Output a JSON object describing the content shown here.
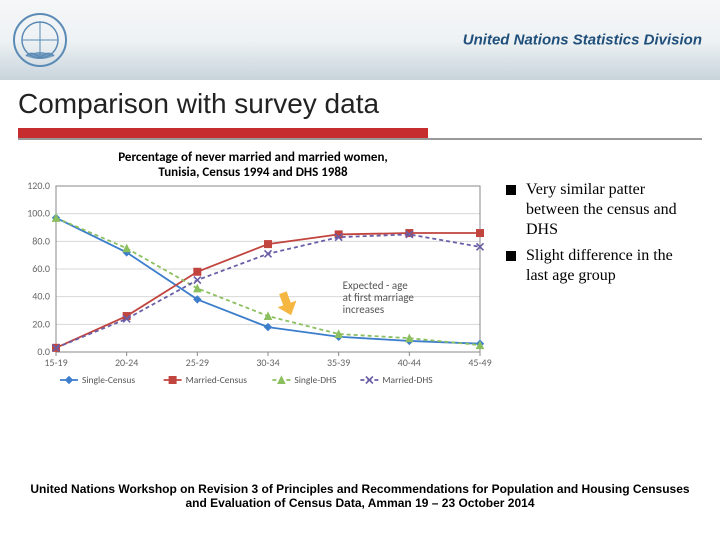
{
  "header": {
    "org_title": "United Nations Statistics Division"
  },
  "slide": {
    "title": "Comparison with survey data",
    "footnote": "United Nations Workshop on Revision 3 of Principles and Recommendations for Population and Housing Censuses and Evaluation of Census Data, Amman 19 – 23 October 2014"
  },
  "bullets": [
    "Very similar patter between the census and DHS",
    "Slight difference in the last age group"
  ],
  "chart": {
    "type": "line",
    "title_line1": "Percentage of never married and married women,",
    "title_line2": "Tunisia, Census 1994 and DHS 1988",
    "categories": [
      "15-19",
      "20-24",
      "25-29",
      "30-34",
      "35-39",
      "40-44",
      "45-49"
    ],
    "ylim": [
      0,
      120
    ],
    "ytick_step": 20,
    "yticks": [
      "0.0",
      "20.0",
      "40.0",
      "60.0",
      "80.0",
      "100.0",
      "120.0"
    ],
    "grid_color": "#d8d8d8",
    "background_color": "#ffffff",
    "border_color": "#888888",
    "axis_color": "#888888",
    "label_fontsize": 10,
    "series": [
      {
        "name": "Single-Census",
        "color": "#3d7ecc",
        "marker": "diamond",
        "dash": "none",
        "values": [
          97,
          72,
          38,
          18,
          11,
          8,
          6
        ]
      },
      {
        "name": "Married-Census",
        "color": "#c1443f",
        "marker": "square",
        "dash": "none",
        "values": [
          3,
          26,
          58,
          78,
          85,
          86,
          86
        ]
      },
      {
        "name": "Single-DHS",
        "color": "#8bbf5f",
        "marker": "triangle",
        "dash": "4 3",
        "values": [
          97,
          75,
          46,
          26,
          13,
          10,
          5
        ]
      },
      {
        "name": "Married-DHS",
        "color": "#6a5fa6",
        "marker": "x",
        "dash": "4 3",
        "values": [
          3,
          24,
          52,
          71,
          83,
          85,
          76
        ]
      }
    ],
    "annotation": {
      "line1": "Expected - age",
      "line2": "at first marriage",
      "line3": "increases"
    },
    "arrow_color": "#f5b642"
  },
  "colors": {
    "rule_red": "#c52d2f",
    "header_blue": "#1f4f7a"
  }
}
